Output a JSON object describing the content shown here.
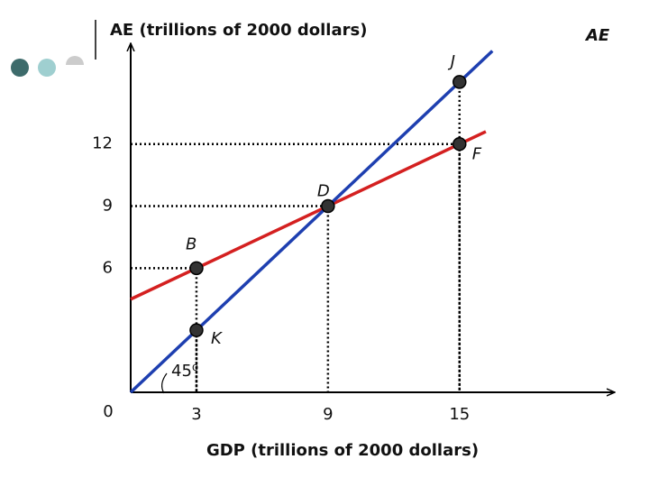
{
  "chart_data": {
    "type": "line",
    "y_axis_label": "AE (trillions of 2000 dollars)",
    "x_axis_label": "GDP (trillions of 2000 dollars)",
    "origin_label": "0",
    "angle_label": "45⁰",
    "xlim": [
      0,
      22
    ],
    "ylim": [
      0,
      17
    ],
    "xticks": [
      3,
      9,
      15
    ],
    "yticks": [
      6,
      9,
      12
    ],
    "series": [
      {
        "name": "AE",
        "color": "#d42020",
        "x": [
          0,
          16.2
        ],
        "values": [
          4.5,
          12.6
        ]
      },
      {
        "color": "#1e3fb0",
        "x": [
          0,
          16.5
        ],
        "values": [
          0,
          16.5
        ]
      }
    ],
    "points": [
      {
        "label": "J",
        "x": 15,
        "y": 15
      },
      {
        "label": "F",
        "x": 15,
        "y": 12
      },
      {
        "label": "D",
        "x": 9,
        "y": 9
      },
      {
        "label": "B",
        "x": 3,
        "y": 6
      },
      {
        "label": "K",
        "x": 3,
        "y": 3
      }
    ]
  }
}
